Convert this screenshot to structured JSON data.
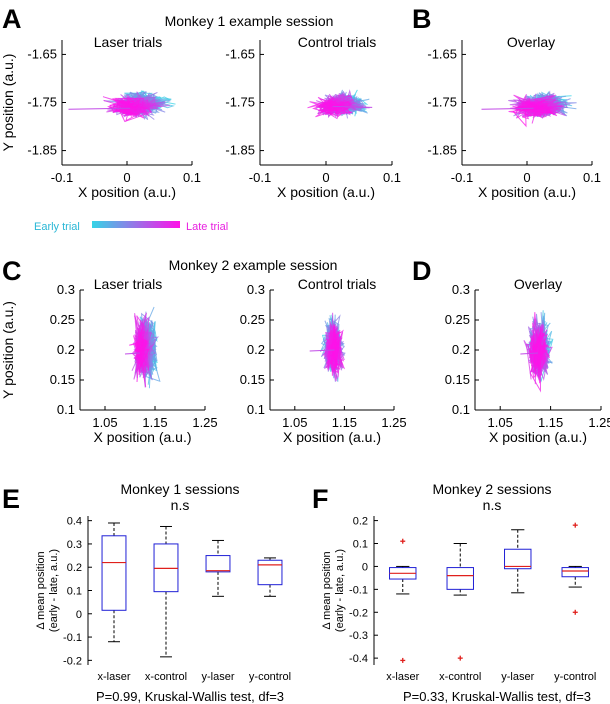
{
  "colors": {
    "early": "#35d4e6",
    "late": "#ff10e8",
    "box": "#1f1fd6",
    "median": "#e0201c",
    "outlier": "#e0201c"
  },
  "legend": {
    "early": "Early trial",
    "late": "Late trial"
  },
  "panels": {
    "A": {
      "letter": "A",
      "heading": "Monkey 1 example session",
      "left_title": "Laser trials",
      "right_title": "Control trials"
    },
    "B": {
      "letter": "B",
      "title": "Overlay"
    },
    "C": {
      "letter": "C",
      "heading": "Monkey 2 example session",
      "left_title": "Laser trials",
      "right_title": "Control trials"
    },
    "D": {
      "letter": "D",
      "title": "Overlay"
    },
    "E": {
      "letter": "E",
      "title": "Monkey 1 sessions",
      "sig": "n.s",
      "stat": "P=0.99, Kruskal-Wallis test, df=3"
    },
    "F": {
      "letter": "F",
      "title": "Monkey 2 sessions",
      "sig": "n.s",
      "stat": "P=0.33, Kruskal-Wallis test, df=3"
    }
  },
  "chart_data": [
    {
      "id": "A-laser",
      "type": "scatter",
      "title": "Laser trials",
      "xlabel": "X position (a.u.)",
      "ylabel": "Y position (a.u.)",
      "xlim": [
        -0.1,
        0.1
      ],
      "ylim": [
        -1.88,
        -1.62
      ],
      "xticks": [
        -0.1,
        0,
        0.1
      ],
      "yticks": [
        -1.65,
        -1.75,
        -1.85
      ],
      "xtick_labels": [
        "-0.1",
        "0",
        "0.1"
      ],
      "ytick_labels": [
        "-1.65",
        "-1.75",
        "-1.85"
      ],
      "center_early": [
        0.03,
        -1.747
      ],
      "center_late": [
        0.005,
        -1.762
      ],
      "spread": [
        0.035,
        0.022
      ],
      "tail_to_x": -0.09
    },
    {
      "id": "A-control",
      "type": "scatter",
      "title": "Control trials",
      "xlabel": "X position (a.u.)",
      "ylabel": "",
      "xlim": [
        -0.1,
        0.1
      ],
      "ylim": [
        -1.88,
        -1.62
      ],
      "xticks": [
        -0.1,
        0,
        0.1
      ],
      "yticks": [
        -1.65,
        -1.75,
        -1.85
      ],
      "xtick_labels": [
        "-0.1",
        "0",
        "0.1"
      ],
      "ytick_labels": [
        "-1.65",
        "-1.75",
        "-1.85"
      ],
      "center_early": [
        0.035,
        -1.752
      ],
      "center_late": [
        0.01,
        -1.758
      ],
      "spread": [
        0.03,
        0.02
      ],
      "tail_to_x": 0.07
    },
    {
      "id": "B-overlay",
      "type": "scatter",
      "title": "Overlay",
      "xlabel": "X position (a.u.)",
      "ylabel": "",
      "xlim": [
        -0.1,
        0.1
      ],
      "ylim": [
        -1.88,
        -1.62
      ],
      "xticks": [
        -0.1,
        0,
        0.1
      ],
      "yticks": [
        -1.65,
        -1.75,
        -1.85
      ],
      "xtick_labels": [
        "-0.1",
        "0",
        "0.1"
      ],
      "ytick_labels": [
        "-1.65",
        "-1.75",
        "-1.85"
      ],
      "center_early": [
        0.035,
        -1.75
      ],
      "center_late": [
        0.01,
        -1.762
      ],
      "spread": [
        0.035,
        0.022
      ],
      "tail_to_x": -0.07
    },
    {
      "id": "C-laser",
      "type": "scatter",
      "title": "Laser trials",
      "xlabel": "X position (a.u.)",
      "ylabel": "Y position (a.u.)",
      "xlim": [
        1.0,
        1.25
      ],
      "ylim": [
        0.1,
        0.3
      ],
      "xticks": [
        1.05,
        1.15,
        1.25
      ],
      "yticks": [
        0.1,
        0.15,
        0.2,
        0.25,
        0.3
      ],
      "xtick_labels": [
        "1.05",
        "1.15",
        "1.25"
      ],
      "ytick_labels": [
        "0.1",
        "0.15",
        "0.2",
        "0.25",
        "0.3"
      ],
      "center_early": [
        1.14,
        0.205
      ],
      "center_late": [
        1.12,
        0.195
      ],
      "spread": [
        0.018,
        0.05
      ],
      "tail_to_x": 1.09
    },
    {
      "id": "C-control",
      "type": "scatter",
      "title": "Control trials",
      "xlabel": "X position (a.u.)",
      "ylabel": "",
      "xlim": [
        1.0,
        1.25
      ],
      "ylim": [
        0.1,
        0.3
      ],
      "xticks": [
        1.05,
        1.15,
        1.25
      ],
      "yticks": [
        0.1,
        0.15,
        0.2,
        0.25,
        0.3
      ],
      "xtick_labels": [
        "1.05",
        "1.15",
        "1.25"
      ],
      "ytick_labels": [
        "0.1",
        "0.15",
        "0.2",
        "0.25",
        "0.3"
      ],
      "center_early": [
        1.125,
        0.21
      ],
      "center_late": [
        1.13,
        0.2
      ],
      "spread": [
        0.018,
        0.045
      ],
      "tail_to_x": 1.08
    },
    {
      "id": "D-overlay",
      "type": "scatter",
      "title": "Overlay",
      "xlabel": "X position (a.u.)",
      "ylabel": "",
      "xlim": [
        1.0,
        1.25
      ],
      "ylim": [
        0.1,
        0.3
      ],
      "xticks": [
        1.05,
        1.15,
        1.25
      ],
      "yticks": [
        0.1,
        0.15,
        0.2,
        0.25,
        0.3
      ],
      "xtick_labels": [
        "1.05",
        "1.15",
        "1.25"
      ],
      "ytick_labels": [
        "0.1",
        "0.15",
        "0.2",
        "0.25",
        "0.3"
      ],
      "center_early": [
        1.13,
        0.205
      ],
      "center_late": [
        1.125,
        0.195
      ],
      "spread": [
        0.02,
        0.045
      ],
      "tail_to_x": 1.09
    },
    {
      "id": "E-box",
      "type": "box",
      "title": "Monkey 1 sessions",
      "ylabel": "Δ mean position\n(early - late, a.u.)",
      "categories": [
        "x-laser",
        "x-control",
        "y-laser",
        "y-control"
      ],
      "ylim": [
        -0.22,
        0.42
      ],
      "yticks": [
        -0.2,
        -0.1,
        0,
        0.1,
        0.2,
        0.3,
        0.4
      ],
      "ytick_labels": [
        "-0.2",
        "-0.1",
        "0",
        "0.1",
        "0.2",
        "0.3",
        "0.4"
      ],
      "boxes": [
        {
          "whisker_low": -0.12,
          "q1": 0.015,
          "median": 0.22,
          "q3": 0.335,
          "whisker_high": 0.39,
          "outliers": []
        },
        {
          "whisker_low": -0.185,
          "q1": 0.095,
          "median": 0.195,
          "q3": 0.3,
          "whisker_high": 0.375,
          "outliers": []
        },
        {
          "whisker_low": 0.075,
          "q1": 0.18,
          "median": 0.185,
          "q3": 0.25,
          "whisker_high": 0.315,
          "outliers": []
        },
        {
          "whisker_low": 0.075,
          "q1": 0.125,
          "median": 0.21,
          "q3": 0.23,
          "whisker_high": 0.24,
          "outliers": []
        }
      ]
    },
    {
      "id": "F-box",
      "type": "box",
      "title": "Monkey 2 sessions",
      "ylabel": "Δ mean position\n(early - late, a.u.)",
      "categories": [
        "x-laser",
        "x-control",
        "y-laser",
        "y-control"
      ],
      "ylim": [
        -0.43,
        0.22
      ],
      "yticks": [
        -0.4,
        -0.3,
        -0.2,
        -0.1,
        0,
        0.1,
        0.2
      ],
      "ytick_labels": [
        "-0.4",
        "-0.3",
        "-0.2",
        "-0.1",
        "0",
        "0.1",
        "0.2"
      ],
      "boxes": [
        {
          "whisker_low": -0.12,
          "q1": -0.055,
          "median": -0.03,
          "q3": -0.005,
          "whisker_high": 0.0,
          "outliers": [
            0.11,
            -0.41
          ]
        },
        {
          "whisker_low": -0.125,
          "q1": -0.1,
          "median": -0.04,
          "q3": -0.005,
          "whisker_high": 0.1,
          "outliers": [
            -0.4
          ]
        },
        {
          "whisker_low": -0.115,
          "q1": -0.01,
          "median": 0.0,
          "q3": 0.075,
          "whisker_high": 0.16,
          "outliers": []
        },
        {
          "whisker_low": -0.09,
          "q1": -0.045,
          "median": -0.02,
          "q3": -0.005,
          "whisker_high": 0.0,
          "outliers": [
            0.18,
            -0.2
          ]
        }
      ]
    }
  ]
}
